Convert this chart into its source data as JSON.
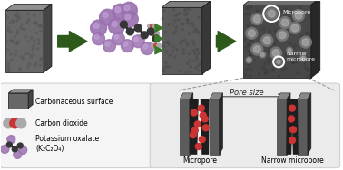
{
  "bg_color": "#ffffff",
  "arrow_color": "#2d5a1b",
  "small_arrow_color": "#3a7a28",
  "purple_large": "#9b72b0",
  "purple_medium": "#a090c8",
  "dark_node": "#3a3a3a",
  "co2_red": "#cc3333",
  "co2_gray": "#aaaaaa",
  "carbonaceous_label": "Carbonaceous surface",
  "co2_label": "Carbon dioxide",
  "k2c2o4_label": "Potassium oxalate\n(K₂C₂O₄)",
  "micropore_label": "Micropore",
  "narrow_micropore_label": "Narrow\nmicropore",
  "pore_size_label": "Pore size",
  "micropore_bottom": "Micropore",
  "narrow_bottom": "Narrow micropore"
}
